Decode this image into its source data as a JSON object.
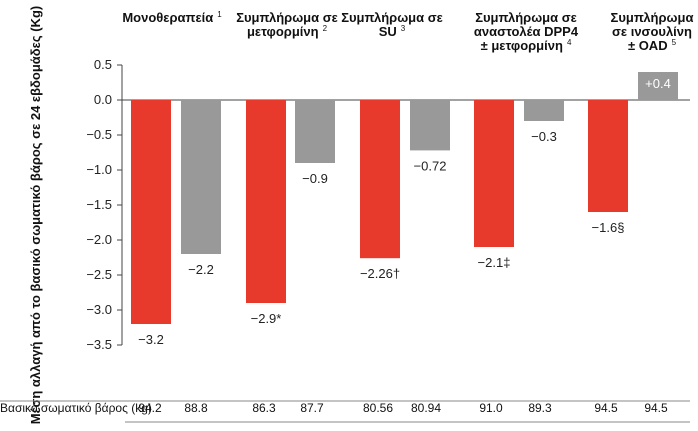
{
  "chart_data": {
    "type": "bar",
    "ylabel": "Μέση αλλαγή από το βασικό σωματικό βάρος σε 24 εβδομάδες (Kg)",
    "ylim": [
      -3.5,
      0.5
    ],
    "yticks": [
      "0.5",
      "0.0",
      "−0.5",
      "−1.0",
      "−1.5",
      "−2.0",
      "−2.5",
      "−3.0",
      "−3.5"
    ],
    "ytick_values": [
      0.5,
      0.0,
      -0.5,
      -1.0,
      -1.5,
      -2.0,
      -2.5,
      -3.0,
      -3.5
    ],
    "grid": false,
    "groups": [
      {
        "title": [
          "Μονοθεραπεία"
        ],
        "sup": "1"
      },
      {
        "title": [
          "Συμπλήρωμα σε",
          "μετφορμίνη"
        ],
        "sup": "2"
      },
      {
        "title": [
          "Συμπλήρωμα σε",
          "SU"
        ],
        "sup": "3"
      },
      {
        "title": [
          "Συμπλήρωμα σε",
          "αναστολέα DPP4",
          "± μετφορμίνη"
        ],
        "sup": "4"
      },
      {
        "title": [
          "Συμπλήρωμα",
          "σε ινσουλίνη",
          "± OAD"
        ],
        "sup": "5"
      }
    ],
    "series": [
      {
        "color": "#e8392d",
        "values": [
          -3.2,
          -2.9,
          -2.26,
          -2.1,
          -1.6
        ],
        "labels": [
          "−3.2",
          "−2.9*",
          "−2.26†",
          "−2.1‡",
          "−1.6§"
        ]
      },
      {
        "color": "#999999",
        "values": [
          -2.2,
          -0.9,
          -0.72,
          -0.3,
          0.4
        ],
        "labels": [
          "−2.2",
          "−0.9",
          "−0.72",
          "−0.3",
          "+0.4"
        ]
      }
    ],
    "baseline": {
      "label": "Βασικό σωματικό βάρος (kg)",
      "values": [
        "94.2",
        "88.8",
        "86.3",
        "87.7",
        "80.56",
        "80.94",
        "91.0",
        "89.3",
        "94.5",
        "94.5"
      ]
    }
  }
}
